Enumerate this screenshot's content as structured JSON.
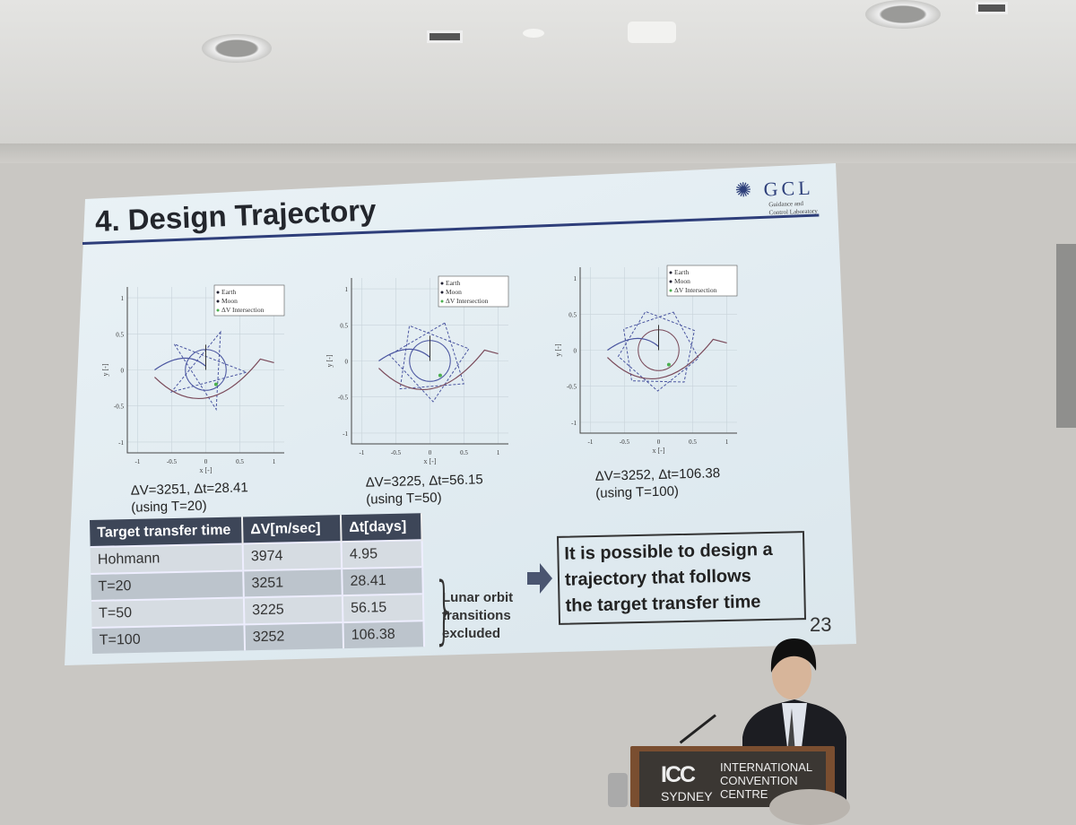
{
  "slide": {
    "title": "4. Design Trajectory",
    "logo": {
      "text": "GCL",
      "subtitle_line1": "Guidance and",
      "subtitle_line2": "Control Laboratory",
      "color": "#2d3f7a"
    },
    "plots": [
      {
        "legend": [
          "Earth",
          "Moon",
          "ΔV Intersection"
        ],
        "xlabel": "x [-]",
        "ylabel": "y [-]",
        "xticks": [
          "-1",
          "-0.5",
          "0",
          "0.5",
          "1"
        ],
        "yticks": [
          "-1",
          "-0.5",
          "0",
          "0.5",
          "1"
        ],
        "caption_line1": "ΔV=3251, Δt=28.41",
        "caption_line2": "(using T=20)"
      },
      {
        "legend": [
          "Earth",
          "Moon",
          "ΔV Intersection"
        ],
        "xlabel": "x [-]",
        "ylabel": "y [-]",
        "xticks": [
          "-1",
          "-0.5",
          "0",
          "0.5",
          "1"
        ],
        "yticks": [
          "-1",
          "-0.5",
          "0",
          "0.5",
          "1"
        ],
        "caption_line1": "ΔV=3225, Δt=56.15",
        "caption_line2": "(using T=50)"
      },
      {
        "legend": [
          "Earth",
          "Moon",
          "ΔV Intersection"
        ],
        "xlabel": "x [-]",
        "ylabel": "y [-]",
        "xticks": [
          "-1",
          "-0.5",
          "0",
          "0.5",
          "1"
        ],
        "yticks": [
          "-1",
          "-0.5",
          "0",
          "0.5",
          "1"
        ],
        "caption_line1": "ΔV=3252, Δt=106.38",
        "caption_line2": "(using T=100)"
      }
    ],
    "table": {
      "headers": [
        "Target transfer time",
        "ΔV[m/sec]",
        "Δt[days]"
      ],
      "rows": [
        [
          "Hohmann",
          "3974",
          "4.95"
        ],
        [
          "T=20",
          "3251",
          "28.41"
        ],
        [
          "T=50",
          "3225",
          "56.15"
        ],
        [
          "T=100",
          "3252",
          "106.38"
        ]
      ]
    },
    "note": [
      "Lunar orbit",
      "transitions",
      "excluded"
    ],
    "conclusion": [
      "It is possible to design a",
      "trajectory that follows",
      "the target transfer time"
    ],
    "page_number": "23"
  },
  "podium": {
    "logo": "ICC",
    "city": "SYDNEY",
    "name": [
      "INTERNATIONAL",
      "CONVENTION",
      "CENTRE"
    ]
  },
  "colors": {
    "title_rule": "#2e3e7a",
    "table_header": "#3d4658",
    "trajectory": "#4a55a0",
    "trajectory2": "#7a4a5a",
    "intersection": "#4caf50"
  }
}
